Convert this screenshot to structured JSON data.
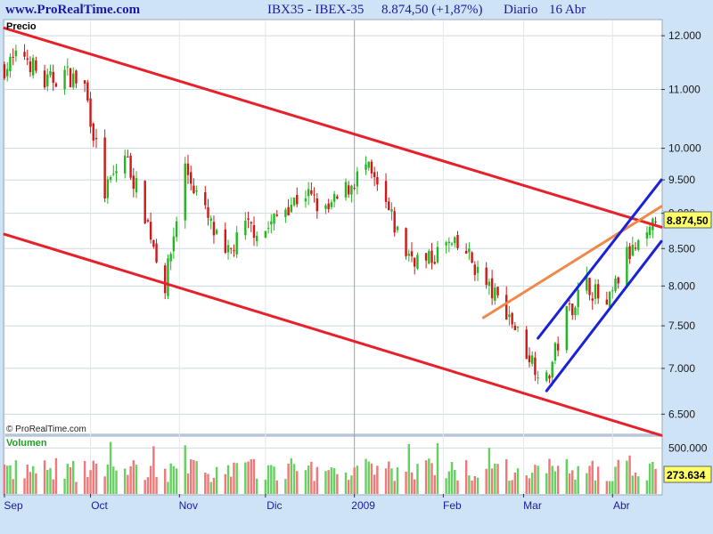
{
  "header": {
    "site": "www.ProRealTime.com",
    "instrument": "IBX35 - IBEX-35",
    "price_change": "8.874,50 (+1,87%)",
    "period": "Diario",
    "date": "16 Abr"
  },
  "chart_data": {
    "type": "candlestick",
    "price_panel": {
      "label": "Precio",
      "y_scale": "log",
      "ylim": [
        6300,
        12300
      ],
      "ticks": [
        12000,
        11000,
        10000,
        9500,
        9000,
        8500,
        8000,
        7500,
        7000,
        6500
      ],
      "tick_labels": [
        "12.000",
        "11.000",
        "10.000",
        "9.500",
        "9.000",
        "8.500",
        "8.000",
        "7.500",
        "7.000",
        "6.500"
      ],
      "last_price_label": "8.874,50",
      "last_price": 8874.5,
      "watermark": "© ProRealTime.com",
      "trendlines": [
        {
          "color": "#e8202a",
          "from": {
            "x": "2008-09-01",
            "y": 12150
          },
          "to": {
            "x": "2009-04-18",
            "y": 8800
          }
        },
        {
          "color": "#e8202a",
          "from": {
            "x": "2008-09-01",
            "y": 8700
          },
          "to": {
            "x": "2009-04-18",
            "y": 6280
          }
        },
        {
          "color": "#f0884a",
          "from": {
            "x": "2009-02-15",
            "y": 7600
          },
          "to": {
            "x": "2009-04-18",
            "y": 9100
          }
        },
        {
          "color": "#1a22d8",
          "from": {
            "x": "2009-03-06",
            "y": 7350
          },
          "to": {
            "x": "2009-04-18",
            "y": 9500
          }
        },
        {
          "color": "#1a22d8",
          "from": {
            "x": "2009-03-09",
            "y": 6750
          },
          "to": {
            "x": "2009-04-18",
            "y": 8600
          }
        }
      ]
    },
    "volume_panel": {
      "label": "Volumen",
      "ylim": [
        0,
        620000
      ],
      "ticks": [
        500000
      ],
      "tick_labels": [
        "500.000"
      ],
      "last_volume_label": "273.634",
      "last_volume": 273634
    },
    "x_axis": {
      "start": "2008-09-01",
      "end": "2009-04-18",
      "labels": [
        {
          "date": "2008-09-01",
          "text": "Sep"
        },
        {
          "date": "2008-10-01",
          "text": "Oct"
        },
        {
          "date": "2008-11-01",
          "text": "Nov"
        },
        {
          "date": "2008-12-01",
          "text": "Dic"
        },
        {
          "date": "2009-01-01",
          "text": "2009"
        },
        {
          "date": "2009-02-01",
          "text": "Feb"
        },
        {
          "date": "2009-03-01",
          "text": "Mar"
        },
        {
          "date": "2009-04-01",
          "text": "Abr"
        }
      ]
    },
    "colors": {
      "up": "#22b822",
      "down": "#d01818",
      "volume_up": "#66d060",
      "volume_down": "#f07878",
      "background": "#ffffff",
      "frame": "#cfe3f7"
    },
    "close_points": [
      {
        "date": "2008-09-01",
        "close": 11400
      },
      {
        "date": "2008-09-08",
        "close": 11650
      },
      {
        "date": "2008-09-15",
        "close": 11100
      },
      {
        "date": "2008-09-22",
        "close": 11300
      },
      {
        "date": "2008-09-29",
        "close": 11050
      },
      {
        "date": "2008-10-06",
        "close": 9300
      },
      {
        "date": "2008-10-13",
        "close": 9900
      },
      {
        "date": "2008-10-20",
        "close": 9000
      },
      {
        "date": "2008-10-27",
        "close": 8000
      },
      {
        "date": "2008-11-03",
        "close": 9700
      },
      {
        "date": "2008-11-10",
        "close": 9000
      },
      {
        "date": "2008-11-17",
        "close": 8350
      },
      {
        "date": "2008-11-24",
        "close": 8800
      },
      {
        "date": "2008-12-01",
        "close": 8750
      },
      {
        "date": "2008-12-08",
        "close": 9100
      },
      {
        "date": "2008-12-15",
        "close": 9300
      },
      {
        "date": "2008-12-22",
        "close": 9000
      },
      {
        "date": "2009-01-05",
        "close": 9700
      },
      {
        "date": "2009-01-12",
        "close": 9100
      },
      {
        "date": "2009-01-19",
        "close": 8450
      },
      {
        "date": "2009-01-26",
        "close": 8300
      },
      {
        "date": "2009-02-02",
        "close": 8550
      },
      {
        "date": "2009-02-09",
        "close": 8450
      },
      {
        "date": "2009-02-16",
        "close": 8000
      },
      {
        "date": "2009-02-23",
        "close": 7700
      },
      {
        "date": "2009-03-02",
        "close": 7200
      },
      {
        "date": "2009-03-09",
        "close": 6850
      },
      {
        "date": "2009-03-16",
        "close": 7650
      },
      {
        "date": "2009-03-23",
        "close": 8050
      },
      {
        "date": "2009-03-30",
        "close": 7700
      },
      {
        "date": "2009-04-06",
        "close": 8400
      },
      {
        "date": "2009-04-13",
        "close": 8600
      },
      {
        "date": "2009-04-16",
        "close": 8874.5
      }
    ]
  }
}
